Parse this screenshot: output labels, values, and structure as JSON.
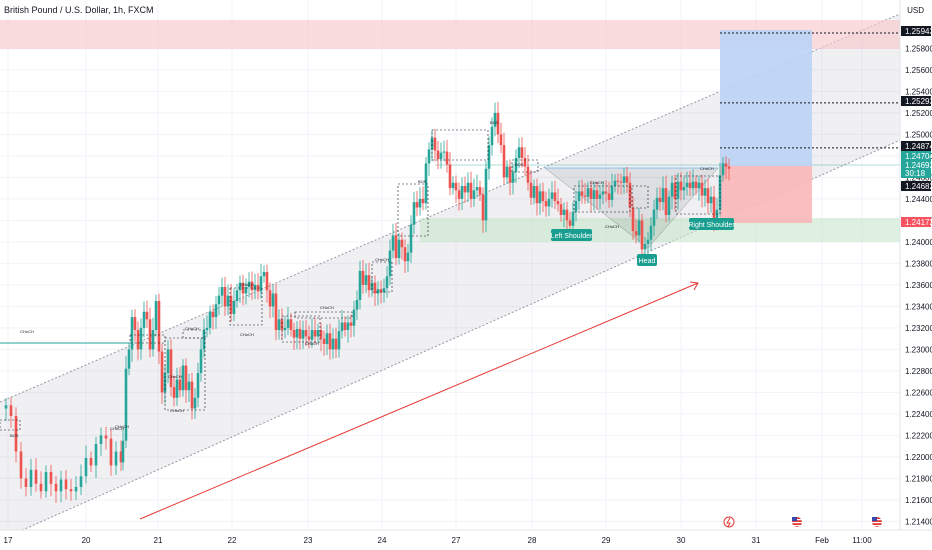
{
  "header": {
    "title": "British Pound / U.S. Dollar, 1h, FXCM",
    "currency": "USD"
  },
  "colors": {
    "bull": "#26a69a",
    "bear": "#ef5350",
    "rising_arrow": "#e53935",
    "sell_zone": "#f8c9cc",
    "demand_zone": "#c8e6c9",
    "target_box": "#bbd3f5",
    "stop_box": "#f9b6b9",
    "last_price": "#26a69a",
    "structure_line": "#26a69a"
  },
  "chart_data": {
    "type": "candlestick",
    "symbol": "GBPUSD",
    "timeframe": "1h",
    "y_axis": {
      "range": [
        1.2132,
        1.2625
      ],
      "ticks": [
        "1.21400",
        "1.21600",
        "1.21800",
        "1.22000",
        "1.22200",
        "1.22400",
        "1.22600",
        "1.22800",
        "1.23000",
        "1.23200",
        "1.23400",
        "1.23600",
        "1.23800",
        "1.24000",
        "1.24200",
        "1.24400",
        "1.24600",
        "1.24800",
        "1.25000",
        "1.25200",
        "1.25400",
        "1.25600",
        "1.25800"
      ]
    },
    "x_axis": {
      "ticks": [
        "17",
        "20",
        "21",
        "22",
        "23",
        "24",
        "27",
        "28",
        "29",
        "30",
        "31",
        "Feb",
        "11:00"
      ]
    },
    "price_tags": [
      {
        "label": "1.25943",
        "style": "dark"
      },
      {
        "label": "1.25293",
        "style": "dark"
      },
      {
        "label": "1.24874",
        "style": "dark"
      },
      {
        "label": "1.24704",
        "style": "green"
      },
      {
        "label": "1.24693",
        "style": "green-small"
      },
      {
        "label": "30:18",
        "style": "green-small"
      },
      {
        "label": "1.24682",
        "style": "dark"
      },
      {
        "label": "1.24172",
        "style": "red"
      }
    ],
    "pattern_labels": [
      "Left Shoulder",
      "Head",
      "Right Shoulder"
    ],
    "structure_labels": [
      "CHoCH",
      "BOS",
      "CHoCH",
      "CHoCH",
      "CHoCH",
      "CHoCH",
      "CHoCH",
      "CHoCH",
      "CHoCH",
      "CHoCH",
      "BOS",
      "BOS",
      "BOS",
      "CHoCH",
      "CHoCH",
      "CHoCH",
      "CHoCH",
      "CHoCH"
    ],
    "key_levels": [
      1.25943,
      1.25293,
      1.24874
    ],
    "trade": {
      "entry": 1.24704,
      "target": 1.25943,
      "stop": 1.24172
    },
    "price_path": [
      [
        0,
        1.2245
      ],
      [
        6,
        1.2248
      ],
      [
        11,
        1.2238
      ],
      [
        16,
        1.2205
      ],
      [
        21,
        1.218
      ],
      [
        26,
        1.2172
      ],
      [
        31,
        1.2188
      ],
      [
        36,
        1.2175
      ],
      [
        41,
        1.2168
      ],
      [
        46,
        1.2186
      ],
      [
        51,
        1.2175
      ],
      [
        56,
        1.2168
      ],
      [
        61,
        1.2179
      ],
      [
        66,
        1.217
      ],
      [
        71,
        1.2168
      ],
      [
        76,
        1.2172
      ],
      [
        81,
        1.2182
      ],
      [
        86,
        1.2199
      ],
      [
        91,
        1.2192
      ],
      [
        96,
        1.2212
      ],
      [
        101,
        1.222
      ],
      [
        106,
        1.2217
      ],
      [
        111,
        1.2192
      ],
      [
        116,
        1.2205
      ],
      [
        121,
        1.2195
      ],
      [
        123,
        1.2215
      ],
      [
        126,
        1.2282
      ],
      [
        129,
        1.23
      ],
      [
        132,
        1.233
      ],
      [
        135,
        1.2318
      ],
      [
        138,
        1.23
      ],
      [
        141,
        1.232
      ],
      [
        144,
        1.2335
      ],
      [
        147,
        1.2328
      ],
      [
        150,
        1.23
      ],
      [
        153,
        1.2318
      ],
      [
        156,
        1.2345
      ],
      [
        159,
        1.2298
      ],
      [
        162,
        1.226
      ],
      [
        165,
        1.2278
      ],
      [
        168,
        1.23
      ],
      [
        171,
        1.2265
      ],
      [
        174,
        1.2255
      ],
      [
        177,
        1.2272
      ],
      [
        180,
        1.2262
      ],
      [
        183,
        1.2285
      ],
      [
        186,
        1.2262
      ],
      [
        189,
        1.227
      ],
      [
        192,
        1.2245
      ],
      [
        195,
        1.2255
      ],
      [
        198,
        1.2278
      ],
      [
        201,
        1.23
      ],
      [
        204,
        1.2318
      ],
      [
        207,
        1.232
      ],
      [
        210,
        1.2335
      ],
      [
        213,
        1.233
      ],
      [
        216,
        1.2342
      ],
      [
        219,
        1.235
      ],
      [
        222,
        1.2358
      ],
      [
        225,
        1.234
      ],
      [
        228,
        1.235
      ],
      [
        231,
        1.2333
      ],
      [
        234,
        1.2345
      ],
      [
        237,
        1.2355
      ],
      [
        240,
        1.2362
      ],
      [
        243,
        1.2352
      ],
      [
        246,
        1.2358
      ],
      [
        249,
        1.2363
      ],
      [
        252,
        1.2355
      ],
      [
        255,
        1.236
      ],
      [
        258,
        1.2354
      ],
      [
        261,
        1.2368
      ],
      [
        264,
        1.2372
      ],
      [
        267,
        1.2355
      ],
      [
        270,
        1.234
      ],
      [
        273,
        1.2352
      ],
      [
        276,
        1.2318
      ],
      [
        279,
        1.2328
      ],
      [
        282,
        1.2318
      ],
      [
        285,
        1.232
      ],
      [
        288,
        1.2328
      ],
      [
        291,
        1.2318
      ],
      [
        294,
        1.2311
      ],
      [
        297,
        1.2319
      ],
      [
        300,
        1.231
      ],
      [
        303,
        1.2318
      ],
      [
        306,
        1.2312
      ],
      [
        309,
        1.2309
      ],
      [
        312,
        1.2318
      ],
      [
        315,
        1.2312
      ],
      [
        318,
        1.2318
      ],
      [
        321,
        1.231
      ],
      [
        324,
        1.2305
      ],
      [
        327,
        1.2315
      ],
      [
        330,
        1.23
      ],
      [
        333,
        1.231
      ],
      [
        336,
        1.23
      ],
      [
        339,
        1.2317
      ],
      [
        342,
        1.2325
      ],
      [
        345,
        1.2318
      ],
      [
        348,
        1.2325
      ],
      [
        351,
        1.2322
      ],
      [
        354,
        1.2337
      ],
      [
        357,
        1.2346
      ],
      [
        360,
        1.2373
      ],
      [
        363,
        1.236
      ],
      [
        366,
        1.2369
      ],
      [
        369,
        1.2355
      ],
      [
        372,
        1.2362
      ],
      [
        375,
        1.2352
      ],
      [
        378,
        1.2356
      ],
      [
        381,
        1.2353
      ],
      [
        384,
        1.2357
      ],
      [
        387,
        1.2368
      ],
      [
        390,
        1.2392
      ],
      [
        393,
        1.2406
      ],
      [
        396,
        1.2385
      ],
      [
        399,
        1.2402
      ],
      [
        402,
        1.2395
      ],
      [
        405,
        1.2382
      ],
      [
        408,
        1.239
      ],
      [
        411,
        1.2416
      ],
      [
        414,
        1.2437
      ],
      [
        417,
        1.2432
      ],
      [
        420,
        1.244
      ],
      [
        423,
        1.2436
      ],
      [
        426,
        1.2473
      ],
      [
        429,
        1.2486
      ],
      [
        432,
        1.2497
      ],
      [
        435,
        1.2485
      ],
      [
        438,
        1.2477
      ],
      [
        441,
        1.2483
      ],
      [
        444,
        1.2484
      ],
      [
        447,
        1.2472
      ],
      [
        450,
        1.245
      ],
      [
        453,
        1.2455
      ],
      [
        456,
        1.2448
      ],
      [
        459,
        1.244
      ],
      [
        462,
        1.2452
      ],
      [
        465,
        1.2446
      ],
      [
        468,
        1.2455
      ],
      [
        471,
        1.244
      ],
      [
        474,
        1.2448
      ],
      [
        477,
        1.2451
      ],
      [
        480,
        1.2444
      ],
      [
        483,
        1.242
      ],
      [
        486,
        1.2468
      ],
      [
        489,
        1.249
      ],
      [
        492,
        1.2507
      ],
      [
        495,
        1.252
      ],
      [
        498,
        1.25
      ],
      [
        501,
        1.249
      ],
      [
        504,
        1.246
      ],
      [
        507,
        1.247
      ],
      [
        510,
        1.2455
      ],
      [
        513,
        1.2465
      ],
      [
        516,
        1.2478
      ],
      [
        519,
        1.2488
      ],
      [
        522,
        1.2478
      ],
      [
        525,
        1.247
      ],
      [
        528,
        1.2455
      ],
      [
        531,
        1.2441
      ],
      [
        534,
        1.2452
      ],
      [
        537,
        1.2436
      ],
      [
        540,
        1.2447
      ],
      [
        543,
        1.2438
      ],
      [
        546,
        1.2433
      ],
      [
        549,
        1.244
      ],
      [
        552,
        1.2446
      ],
      [
        555,
        1.2438
      ],
      [
        558,
        1.2435
      ],
      [
        561,
        1.2425
      ],
      [
        564,
        1.243
      ],
      [
        567,
        1.242
      ],
      [
        570,
        1.2415
      ],
      [
        573,
        1.2428
      ],
      [
        576,
        1.2438
      ],
      [
        579,
        1.2447
      ],
      [
        582,
        1.2443
      ],
      [
        585,
        1.2442
      ],
      [
        588,
        1.245
      ],
      [
        591,
        1.244
      ],
      [
        594,
        1.2448
      ],
      [
        597,
        1.244
      ],
      [
        600,
        1.2444
      ],
      [
        603,
        1.2447
      ],
      [
        606,
        1.2445
      ],
      [
        609,
        1.2439
      ],
      [
        612,
        1.2452
      ],
      [
        615,
        1.2457
      ],
      [
        618,
        1.2456
      ],
      [
        621,
        1.2455
      ],
      [
        624,
        1.2461
      ],
      [
        627,
        1.2455
      ],
      [
        630,
        1.2432
      ],
      [
        633,
        1.241
      ],
      [
        636,
        1.2406
      ],
      [
        639,
        1.242
      ],
      [
        642,
        1.2393
      ],
      [
        645,
        1.2398
      ],
      [
        648,
        1.2402
      ],
      [
        651,
        1.2415
      ],
      [
        654,
        1.243
      ],
      [
        657,
        1.2441
      ],
      [
        660,
        1.2437
      ],
      [
        663,
        1.245
      ],
      [
        666,
        1.2425
      ],
      [
        669,
        1.2442
      ],
      [
        672,
        1.2455
      ],
      [
        675,
        1.244
      ],
      [
        678,
        1.2456
      ],
      [
        681,
        1.2448
      ],
      [
        684,
        1.2451
      ],
      [
        687,
        1.2455
      ],
      [
        690,
        1.245
      ],
      [
        693,
        1.2456
      ],
      [
        696,
        1.245
      ],
      [
        699,
        1.2455
      ],
      [
        702,
        1.2443
      ],
      [
        705,
        1.245
      ],
      [
        708,
        1.2436
      ],
      [
        711,
        1.2442
      ],
      [
        714,
        1.2418
      ],
      [
        717,
        1.243
      ],
      [
        720,
        1.2462
      ],
      [
        723,
        1.2473
      ],
      [
        726,
        1.247
      ],
      [
        729,
        1.2468
      ]
    ]
  }
}
